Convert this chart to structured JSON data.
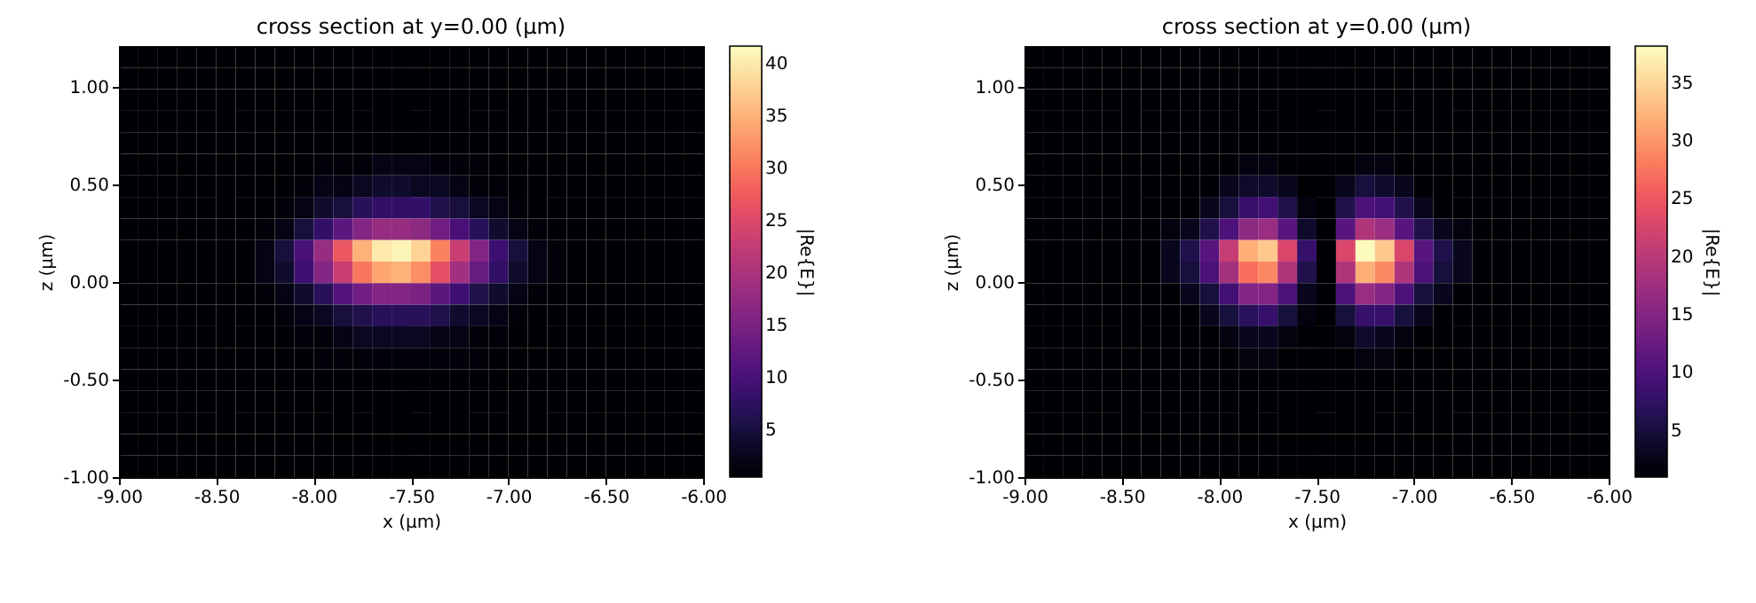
{
  "chart_data": [
    {
      "type": "heatmap",
      "title": "cross section at y=0.00 (μm)",
      "xlabel": "x (μm)",
      "ylabel": "z (μm)",
      "clabel": "|Re{E}|",
      "xlim": [
        -9,
        -6
      ],
      "xticks": [
        {
          "value": -9,
          "label": "-9.00"
        },
        {
          "value": -8.5,
          "label": "-8.50"
        },
        {
          "value": -8,
          "label": "-8.00"
        },
        {
          "value": -7.5,
          "label": "-7.50"
        },
        {
          "value": -7,
          "label": "-7.00"
        },
        {
          "value": -6.5,
          "label": "-6.50"
        },
        {
          "value": -6,
          "label": "-6.00"
        }
      ],
      "ylim": [
        -1,
        1.21
      ],
      "yticks": [
        {
          "value": -1,
          "label": "-1.00"
        },
        {
          "value": -0.5,
          "label": "-0.50"
        },
        {
          "value": 0,
          "label": "0.00"
        },
        {
          "value": 0.5,
          "label": "0.50"
        },
        {
          "value": 1,
          "label": "1.00"
        }
      ],
      "clim": [
        0.5,
        41.7
      ],
      "cticks": [
        5,
        10,
        15,
        20,
        25,
        30,
        35,
        40
      ],
      "cells": [
        [
          0.5,
          0.5,
          0.5,
          0.5,
          0.5,
          0.5,
          0.5,
          0.5,
          0.5,
          0.5,
          0.5,
          0.5,
          0.5,
          0.5,
          0.5,
          0.5,
          0.5,
          0.5,
          0.5,
          0.5,
          0.5,
          0.5,
          0.5,
          0.5,
          0.5,
          0.5,
          0.5,
          0.5,
          0.5,
          0.5
        ],
        [
          0.5,
          0.5,
          0.5,
          0.5,
          0.5,
          0.5,
          0.5,
          0.5,
          0.5,
          0.5,
          0.5,
          0.5,
          0.5,
          0.5,
          0.5,
          0.5,
          0.5,
          0.5,
          0.5,
          0.5,
          0.5,
          0.5,
          0.5,
          0.5,
          0.5,
          0.5,
          0.5,
          0.5,
          0.5,
          0.5
        ],
        [
          0.5,
          0.5,
          0.5,
          0.5,
          0.5,
          0.5,
          0.5,
          0.5,
          0.5,
          0.5,
          0.5,
          0.5,
          0.5,
          0.5,
          0.5,
          0.5,
          0.5,
          0.5,
          0.5,
          0.5,
          0.5,
          0.5,
          0.5,
          0.5,
          0.5,
          0.5,
          0.5,
          0.5,
          0.5,
          0.5
        ],
        [
          0.5,
          0.5,
          0.5,
          0.5,
          0.5,
          0.5,
          0.5,
          0.5,
          0.5,
          0.5,
          0.5,
          0.5,
          0.5,
          0.5,
          0.5,
          0.5,
          0.5,
          0.5,
          0.5,
          0.5,
          0.5,
          0.5,
          0.5,
          0.5,
          0.5,
          0.5,
          0.5,
          0.5,
          0.5,
          0.5
        ],
        [
          0.5,
          0.5,
          0.5,
          0.5,
          0.5,
          0.5,
          0.5,
          0.5,
          0.5,
          0.5,
          0.5,
          0.5,
          0.5,
          0.5,
          0.5,
          0.5,
          0.5,
          0.5,
          0.5,
          0.5,
          0.5,
          0.5,
          0.5,
          0.5,
          0.5,
          0.5,
          0.5,
          0.5,
          0.5,
          0.5
        ],
        [
          0.5,
          0.5,
          0.5,
          0.5,
          0.5,
          0.5,
          0.5,
          0.5,
          0.5,
          0.5,
          1,
          1,
          1,
          2,
          2,
          2,
          1,
          1,
          1,
          0.5,
          0.5,
          0.5,
          0.5,
          0.5,
          0.5,
          0.5,
          0.5,
          0.5,
          0.5,
          0.5
        ],
        [
          0.5,
          0.5,
          0.5,
          0.5,
          0.5,
          0.5,
          0.5,
          0.5,
          0.5,
          1,
          2,
          2,
          3,
          4,
          4,
          3,
          3,
          2,
          1,
          1,
          0.5,
          0.5,
          0.5,
          0.5,
          0.5,
          0.5,
          0.5,
          0.5,
          0.5,
          0.5
        ],
        [
          0.5,
          0.5,
          0.5,
          0.5,
          0.5,
          0.5,
          0.5,
          0.5,
          1,
          2,
          4,
          5,
          7,
          8,
          8,
          8,
          6,
          5,
          3,
          2,
          1,
          0.5,
          0.5,
          0.5,
          0.5,
          0.5,
          0.5,
          0.5,
          0.5,
          0.5
        ],
        [
          0.5,
          0.5,
          0.5,
          0.5,
          0.5,
          0.5,
          0.5,
          1,
          2,
          5,
          8,
          12,
          16,
          18,
          18,
          17,
          14,
          10,
          7,
          4,
          2,
          1,
          0.5,
          0.5,
          0.5,
          0.5,
          0.5,
          0.5,
          0.5,
          0.5
        ],
        [
          0.5,
          0.5,
          0.5,
          0.5,
          0.5,
          0.5,
          0.5,
          2,
          5,
          10,
          18,
          27,
          35,
          40,
          41,
          38,
          31,
          23,
          16,
          9,
          5,
          2,
          1,
          0.5,
          0.5,
          0.5,
          0.5,
          0.5,
          0.5,
          0.5
        ],
        [
          0.5,
          0.5,
          0.5,
          0.5,
          0.5,
          0.5,
          0.5,
          2,
          4,
          9,
          16,
          23,
          30,
          34,
          35,
          32,
          26,
          19,
          13,
          8,
          4,
          2,
          1,
          0.5,
          0.5,
          0.5,
          0.5,
          0.5,
          0.5,
          0.5
        ],
        [
          0.5,
          0.5,
          0.5,
          0.5,
          0.5,
          0.5,
          0.5,
          1,
          2,
          4,
          7,
          11,
          14,
          16,
          16,
          15,
          12,
          9,
          6,
          4,
          2,
          1,
          0.5,
          0.5,
          0.5,
          0.5,
          0.5,
          0.5,
          0.5,
          0.5
        ],
        [
          0.5,
          0.5,
          0.5,
          0.5,
          0.5,
          0.5,
          0.5,
          0.5,
          1,
          2,
          3,
          5,
          6,
          7,
          7,
          7,
          6,
          4,
          3,
          2,
          1,
          0.5,
          0.5,
          0.5,
          0.5,
          0.5,
          0.5,
          0.5,
          0.5,
          0.5
        ],
        [
          0.5,
          0.5,
          0.5,
          0.5,
          0.5,
          0.5,
          0.5,
          0.5,
          0.5,
          1,
          1,
          2,
          3,
          3,
          3,
          3,
          2,
          2,
          1,
          1,
          0.5,
          0.5,
          0.5,
          0.5,
          0.5,
          0.5,
          0.5,
          0.5,
          0.5,
          0.5
        ],
        [
          0.5,
          0.5,
          0.5,
          0.5,
          0.5,
          0.5,
          0.5,
          0.5,
          0.5,
          0.5,
          1,
          1,
          1,
          1,
          1,
          1,
          1,
          1,
          1,
          0.5,
          0.5,
          0.5,
          0.5,
          0.5,
          0.5,
          0.5,
          0.5,
          0.5,
          0.5,
          0.5
        ],
        [
          0.5,
          0.5,
          0.5,
          0.5,
          0.5,
          0.5,
          0.5,
          0.5,
          0.5,
          0.5,
          0.5,
          0.5,
          0.5,
          0.5,
          0.5,
          0.5,
          0.5,
          0.5,
          0.5,
          0.5,
          0.5,
          0.5,
          0.5,
          0.5,
          0.5,
          0.5,
          0.5,
          0.5,
          0.5,
          0.5
        ],
        [
          0.5,
          0.5,
          0.5,
          0.5,
          0.5,
          0.5,
          0.5,
          0.5,
          0.5,
          0.5,
          0.5,
          0.5,
          0.5,
          0.5,
          0.5,
          0.5,
          0.5,
          0.5,
          0.5,
          0.5,
          0.5,
          0.5,
          0.5,
          0.5,
          0.5,
          0.5,
          0.5,
          0.5,
          0.5,
          0.5
        ],
        [
          0.5,
          0.5,
          0.5,
          0.5,
          0.5,
          0.5,
          0.5,
          0.5,
          0.5,
          0.5,
          0.5,
          0.5,
          0.5,
          0.5,
          0.5,
          0.5,
          0.5,
          0.5,
          0.5,
          0.5,
          0.5,
          0.5,
          0.5,
          0.5,
          0.5,
          0.5,
          0.5,
          0.5,
          0.5,
          0.5
        ],
        [
          0.5,
          0.5,
          0.5,
          0.5,
          0.5,
          0.5,
          0.5,
          0.5,
          0.5,
          0.5,
          0.5,
          0.5,
          0.5,
          0.5,
          0.5,
          0.5,
          0.5,
          0.5,
          0.5,
          0.5,
          0.5,
          0.5,
          0.5,
          0.5,
          0.5,
          0.5,
          0.5,
          0.5,
          0.5,
          0.5
        ],
        [
          0.5,
          0.5,
          0.5,
          0.5,
          0.5,
          0.5,
          0.5,
          0.5,
          0.5,
          0.5,
          0.5,
          0.5,
          0.5,
          0.5,
          0.5,
          0.5,
          0.5,
          0.5,
          0.5,
          0.5,
          0.5,
          0.5,
          0.5,
          0.5,
          0.5,
          0.5,
          0.5,
          0.5,
          0.5,
          0.5
        ]
      ]
    },
    {
      "type": "heatmap",
      "title": "cross section at y=0.00 (μm)",
      "xlabel": "x (μm)",
      "ylabel": "z (μm)",
      "clabel": "|Re{E}|",
      "xlim": [
        -9,
        -6
      ],
      "xticks": [
        {
          "value": -9,
          "label": "-9.00"
        },
        {
          "value": -8.5,
          "label": "-8.50"
        },
        {
          "value": -8,
          "label": "-8.00"
        },
        {
          "value": -7.5,
          "label": "-7.50"
        },
        {
          "value": -7,
          "label": "-7.00"
        },
        {
          "value": -6.5,
          "label": "-6.50"
        },
        {
          "value": -6,
          "label": "-6.00"
        }
      ],
      "ylim": [
        -1,
        1.21
      ],
      "yticks": [
        {
          "value": -1,
          "label": "-1.00"
        },
        {
          "value": -0.5,
          "label": "-0.50"
        },
        {
          "value": 0,
          "label": "0.00"
        },
        {
          "value": 0.5,
          "label": "0.50"
        },
        {
          "value": 1,
          "label": "1.00"
        }
      ],
      "clim": [
        1,
        38.2
      ],
      "cticks": [
        5,
        10,
        15,
        20,
        25,
        30,
        35
      ],
      "cells": [
        [
          1,
          1,
          1,
          1,
          1,
          1,
          1,
          1,
          1,
          1,
          1,
          1,
          1,
          1,
          1,
          1,
          1,
          1,
          1,
          1,
          1,
          1,
          1,
          1,
          1,
          1,
          1,
          1,
          1,
          1
        ],
        [
          1,
          1,
          1,
          1,
          1,
          1,
          1,
          1,
          1,
          1,
          1,
          1,
          1,
          1,
          1,
          1,
          1,
          1,
          1,
          1,
          1,
          1,
          1,
          1,
          1,
          1,
          1,
          1,
          1,
          1
        ],
        [
          1,
          1,
          1,
          1,
          1,
          1,
          1,
          1,
          1,
          1,
          1,
          1,
          1,
          1,
          1,
          1,
          1,
          1,
          1,
          1,
          1,
          1,
          1,
          1,
          1,
          1,
          1,
          1,
          1,
          1
        ],
        [
          1,
          1,
          1,
          1,
          1,
          1,
          1,
          1,
          1,
          1,
          1,
          1,
          1,
          1,
          1,
          1,
          1,
          1,
          1,
          1,
          1,
          1,
          1,
          1,
          1,
          1,
          1,
          1,
          1,
          1
        ],
        [
          1,
          1,
          1,
          1,
          1,
          1,
          1,
          1,
          1,
          1,
          1,
          1,
          1,
          1,
          1,
          1,
          1,
          1,
          1,
          1,
          1,
          1,
          1,
          1,
          1,
          1,
          1,
          1,
          1,
          1
        ],
        [
          1,
          1,
          1,
          1,
          1,
          1,
          1,
          1,
          1,
          1,
          1,
          2,
          2,
          1,
          1,
          1,
          1,
          2,
          2,
          1,
          1,
          1,
          1,
          1,
          1,
          1,
          1,
          1,
          1,
          1
        ],
        [
          1,
          1,
          1,
          1,
          1,
          1,
          1,
          1,
          1,
          1,
          3,
          4,
          4,
          3,
          1,
          1,
          3,
          5,
          4,
          3,
          1,
          1,
          1,
          1,
          1,
          1,
          1,
          1,
          1,
          1
        ],
        [
          1,
          1,
          1,
          1,
          1,
          1,
          1,
          1,
          1,
          3,
          5,
          8,
          9,
          6,
          2,
          1,
          6,
          10,
          9,
          6,
          3,
          1,
          1,
          1,
          1,
          1,
          1,
          1,
          1,
          1
        ],
        [
          1,
          1,
          1,
          1,
          1,
          1,
          1,
          2,
          3,
          6,
          10,
          16,
          17,
          11,
          4,
          1,
          11,
          19,
          17,
          11,
          6,
          3,
          2,
          1,
          1,
          1,
          1,
          1,
          1,
          1
        ],
        [
          1,
          1,
          1,
          1,
          1,
          1,
          1,
          3,
          6,
          11,
          21,
          32,
          34,
          23,
          8,
          1,
          23,
          38,
          34,
          23,
          11,
          6,
          3,
          1,
          1,
          1,
          1,
          1,
          1,
          1
        ],
        [
          1,
          1,
          1,
          1,
          1,
          1,
          1,
          3,
          5,
          10,
          18,
          27,
          29,
          19,
          6,
          1,
          19,
          32,
          29,
          19,
          10,
          5,
          3,
          1,
          1,
          1,
          1,
          1,
          1,
          1
        ],
        [
          1,
          1,
          1,
          1,
          1,
          1,
          1,
          1,
          3,
          5,
          9,
          15,
          15,
          10,
          3,
          1,
          10,
          17,
          15,
          10,
          5,
          3,
          1,
          1,
          1,
          1,
          1,
          1,
          1,
          1
        ],
        [
          1,
          1,
          1,
          1,
          1,
          1,
          1,
          1,
          1,
          3,
          5,
          7,
          8,
          5,
          2,
          1,
          5,
          8,
          8,
          5,
          3,
          1,
          1,
          1,
          1,
          1,
          1,
          1,
          1,
          1
        ],
        [
          1,
          1,
          1,
          1,
          1,
          1,
          1,
          1,
          1,
          1,
          2,
          3,
          3,
          2,
          1,
          1,
          2,
          4,
          3,
          2,
          1,
          1,
          1,
          1,
          1,
          1,
          1,
          1,
          1,
          1
        ],
        [
          1,
          1,
          1,
          1,
          1,
          1,
          1,
          1,
          1,
          1,
          1,
          2,
          2,
          1,
          1,
          1,
          1,
          2,
          2,
          1,
          1,
          1,
          1,
          1,
          1,
          1,
          1,
          1,
          1,
          1
        ],
        [
          1,
          1,
          1,
          1,
          1,
          1,
          1,
          1,
          1,
          1,
          1,
          1,
          1,
          1,
          1,
          1,
          1,
          1,
          1,
          1,
          1,
          1,
          1,
          1,
          1,
          1,
          1,
          1,
          1,
          1
        ],
        [
          1,
          1,
          1,
          1,
          1,
          1,
          1,
          1,
          1,
          1,
          1,
          1,
          1,
          1,
          1,
          1,
          1,
          1,
          1,
          1,
          1,
          1,
          1,
          1,
          1,
          1,
          1,
          1,
          1,
          1
        ],
        [
          1,
          1,
          1,
          1,
          1,
          1,
          1,
          1,
          1,
          1,
          1,
          1,
          1,
          1,
          1,
          1,
          1,
          1,
          1,
          1,
          1,
          1,
          1,
          1,
          1,
          1,
          1,
          1,
          1,
          1
        ],
        [
          1,
          1,
          1,
          1,
          1,
          1,
          1,
          1,
          1,
          1,
          1,
          1,
          1,
          1,
          1,
          1,
          1,
          1,
          1,
          1,
          1,
          1,
          1,
          1,
          1,
          1,
          1,
          1,
          1,
          1
        ],
        [
          1,
          1,
          1,
          1,
          1,
          1,
          1,
          1,
          1,
          1,
          1,
          1,
          1,
          1,
          1,
          1,
          1,
          1,
          1,
          1,
          1,
          1,
          1,
          1,
          1,
          1,
          1,
          1,
          1,
          1
        ]
      ]
    }
  ]
}
